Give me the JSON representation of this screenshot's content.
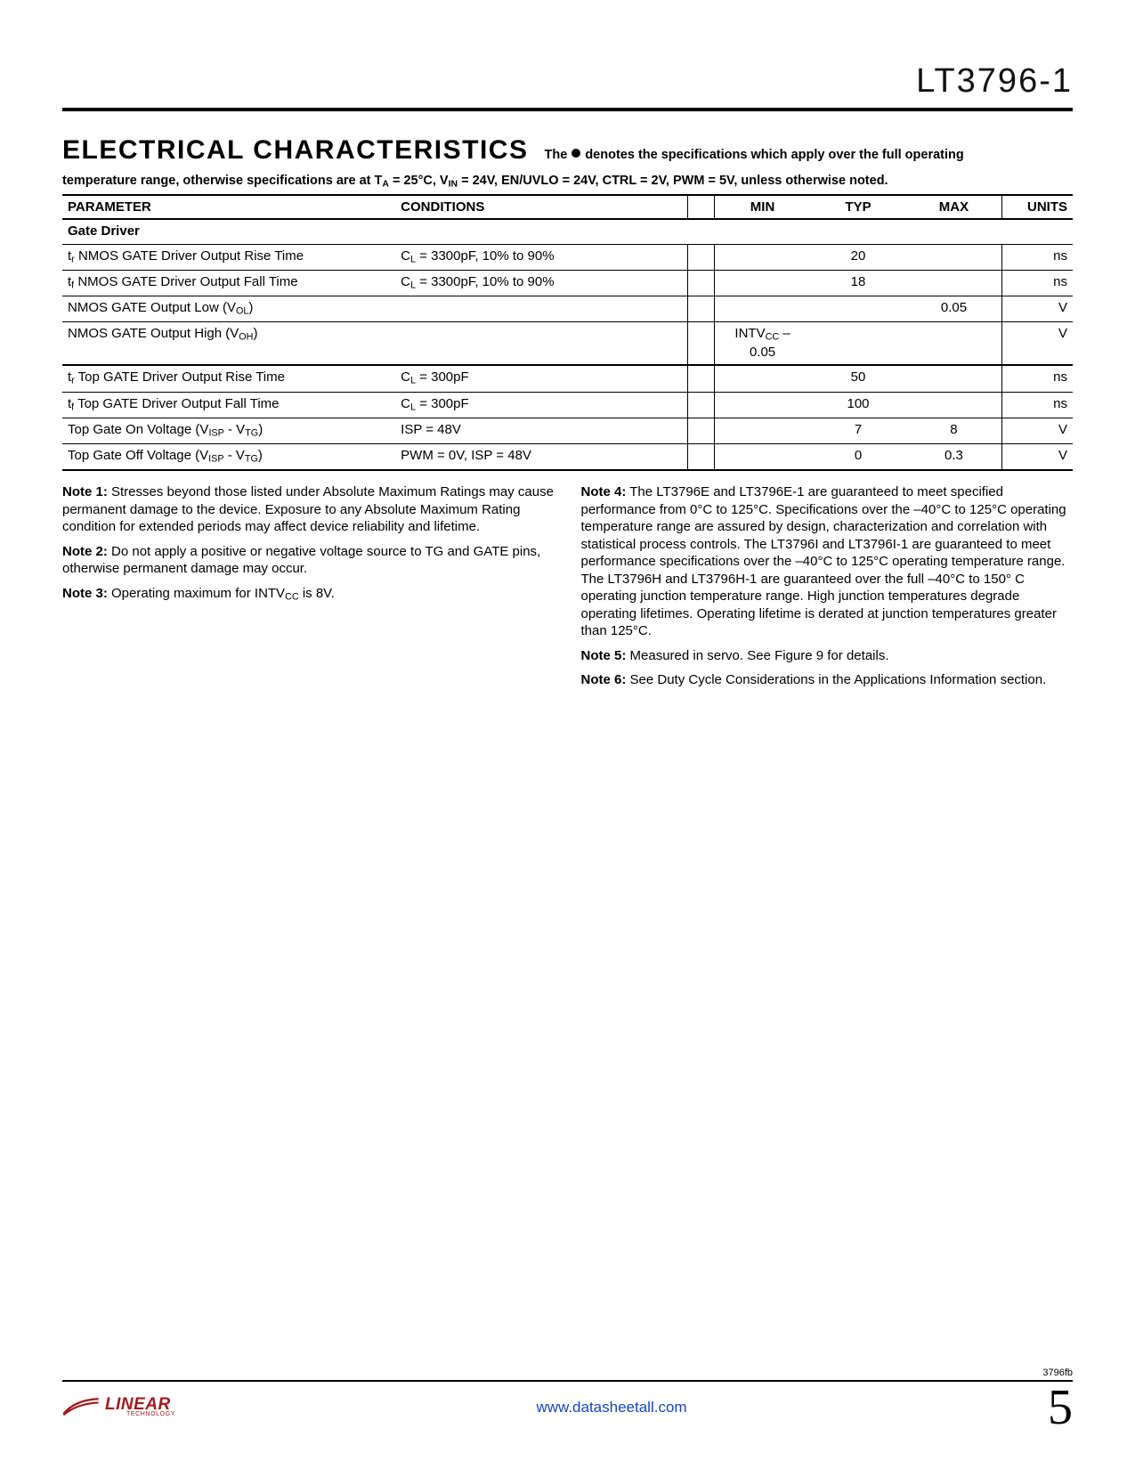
{
  "header": {
    "part_number": "LT3796-1"
  },
  "section": {
    "heading": "ELECTRICAL CHARACTERISTICS",
    "intro_before": "The",
    "intro_after": "denotes the specifications which apply over the full operating",
    "intro_line2_html": "temperature range, otherwise specifications are at T<sub>A</sub> = 25°C, V<sub>IN</sub> = 24V, EN/UVLO = 24V, CTRL = 2V, PWM = 5V, unless otherwise noted."
  },
  "table": {
    "columns": [
      "PARAMETER",
      "CONDITIONS",
      "",
      "MIN",
      "TYP",
      "MAX",
      "UNITS"
    ],
    "group_label": "Gate Driver",
    "rows": [
      {
        "param_html": "t<sub>r</sub> NMOS GATE Driver Output Rise Time",
        "cond_html": "C<sub>L</sub> = 3300pF, 10% to 90%",
        "min": "",
        "typ": "20",
        "max": "",
        "units": "ns"
      },
      {
        "param_html": "t<sub>f</sub> NMOS GATE Driver Output Fall Time",
        "cond_html": "C<sub>L</sub> = 3300pF, 10% to 90%",
        "min": "",
        "typ": "18",
        "max": "",
        "units": "ns"
      },
      {
        "param_html": "NMOS GATE Output Low (V<sub>OL</sub>)",
        "cond_html": "",
        "min": "",
        "typ": "",
        "max": "0.05",
        "units": "V"
      },
      {
        "param_html": "NMOS GATE Output High (V<sub>OH</sub>)",
        "cond_html": "",
        "min_html": "INTV<sub>CC</sub> –<br>0.05",
        "typ": "",
        "max": "",
        "units": "V",
        "thickline": true
      },
      {
        "param_html": "t<sub>r</sub> Top GATE Driver Output Rise Time",
        "cond_html": "C<sub>L</sub> = 300pF",
        "min": "",
        "typ": "50",
        "max": "",
        "units": "ns"
      },
      {
        "param_html": "t<sub>f</sub> Top GATE Driver Output Fall Time",
        "cond_html": "C<sub>L</sub> = 300pF",
        "min": "",
        "typ": "100",
        "max": "",
        "units": "ns"
      },
      {
        "param_html": "Top Gate On Voltage (V<sub>ISP</sub> - V<sub>TG</sub>)",
        "cond_html": "ISP = 48V",
        "min": "",
        "typ": "7",
        "max": "8",
        "units": "V"
      },
      {
        "param_html": "Top Gate Off Voltage (V<sub>ISP</sub> - V<sub>TG</sub>)",
        "cond_html": "PWM = 0V, ISP = 48V",
        "min": "",
        "typ": "0",
        "max": "0.3",
        "units": "V",
        "lastline": true
      }
    ]
  },
  "notes": [
    {
      "label": "Note 1:",
      "text": "Stresses beyond those listed under Absolute Maximum Ratings may cause permanent damage to the device. Exposure to any Absolute Maximum Rating condition for extended periods may affect device reliability and lifetime."
    },
    {
      "label": "Note 2:",
      "text": "Do not apply a positive or negative voltage source to TG and GATE pins, otherwise permanent damage may occur."
    },
    {
      "label": "Note 3:",
      "text_html": "Operating maximum for INTV<sub>CC</sub> is 8V."
    },
    {
      "label": "Note 4:",
      "text": "The LT3796E and LT3796E-1 are guaranteed to meet specified performance from 0°C to 125°C. Specifications over the –40°C to 125°C operating temperature range are assured by design, characterization and correlation with statistical process controls. The LT3796I and LT3796I-1 are guaranteed to meet performance specifications over the –40°C to 125°C operating temperature range. The LT3796H and LT3796H-1 are guaranteed over the full –40°C to 150° C operating junction temperature range. High junction temperatures degrade operating lifetimes. Operating lifetime is derated at junction temperatures greater than 125°C."
    },
    {
      "label": "Note 5:",
      "text": "Measured in servo. See Figure 9 for details."
    },
    {
      "label": "Note 6:",
      "text": "See Duty Cycle Considerations in the Applications Information section."
    }
  ],
  "footer": {
    "doc_code": "3796fb",
    "logo_brand": "LINEAR",
    "logo_sub": "TECHNOLOGY",
    "site_url": "www.datasheetall.com",
    "page_number": "5",
    "logo_color": "#a21b1d",
    "link_color": "#1645c8"
  }
}
